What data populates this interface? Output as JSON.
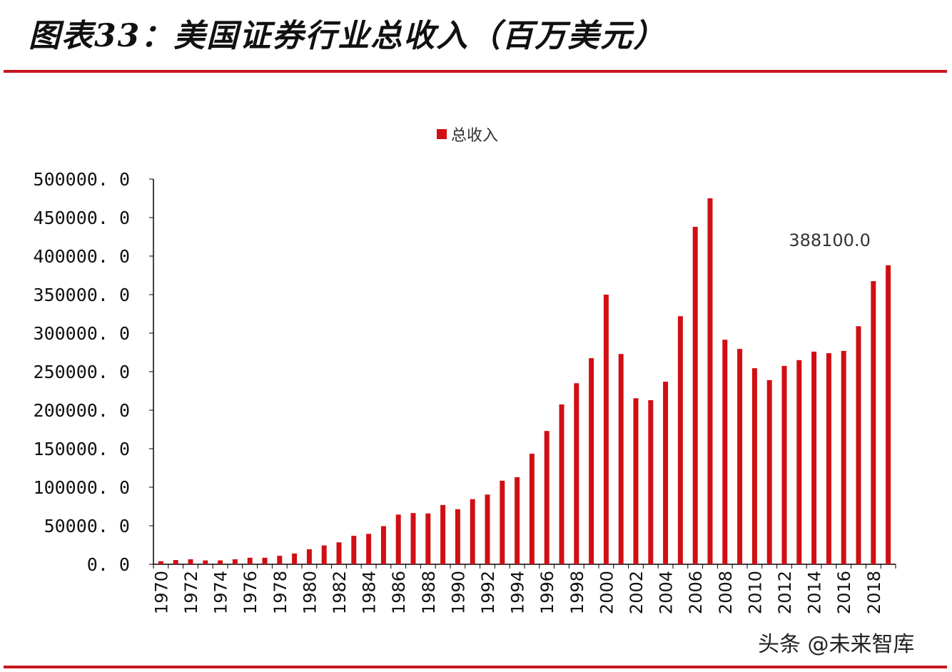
{
  "title": "图表33：美国证券行业总收入（百万美元）",
  "watermark": "头条 @未来智库",
  "chart_data": {
    "type": "bar",
    "title": "",
    "legend": [
      "总收入"
    ],
    "legend_position": "top-center",
    "color": "#d00f14",
    "xlabel": "",
    "ylabel": "",
    "ylim": [
      0,
      500000
    ],
    "yticks": [
      "0.0",
      "50000.0",
      "100000.0",
      "150000.0",
      "200000.0",
      "250000.0",
      "300000.0",
      "350000.0",
      "400000.0",
      "450000.0",
      "500000.0"
    ],
    "categories": [
      "1970",
      "1971",
      "1972",
      "1973",
      "1974",
      "1975",
      "1976",
      "1977",
      "1978",
      "1979",
      "1980",
      "1981",
      "1982",
      "1983",
      "1984",
      "1985",
      "1986",
      "1987",
      "1988",
      "1989",
      "1990",
      "1991",
      "1992",
      "1993",
      "1994",
      "1995",
      "1996",
      "1997",
      "1998",
      "1999",
      "2000",
      "2001",
      "2002",
      "2003",
      "2004",
      "2005",
      "2006",
      "2007",
      "2008",
      "2009",
      "2010",
      "2011",
      "2012",
      "2013",
      "2014",
      "2015",
      "2016",
      "2017",
      "2018",
      "2019"
    ],
    "xtick_labels": [
      "1970",
      "1972",
      "1974",
      "1976",
      "1978",
      "1980",
      "1982",
      "1984",
      "1986",
      "1988",
      "1990",
      "1992",
      "1994",
      "1996",
      "1998",
      "2000",
      "2002",
      "2004",
      "2006",
      "2008",
      "2010",
      "2012",
      "2014",
      "2016",
      "2018"
    ],
    "series": [
      {
        "name": "总收入",
        "values": [
          4000,
          5500,
          6500,
          5000,
          5000,
          6500,
          8500,
          8500,
          11000,
          14000,
          19500,
          24500,
          28500,
          37000,
          39500,
          49500,
          64500,
          66500,
          66000,
          77000,
          71500,
          84500,
          90500,
          108500,
          113000,
          143500,
          173000,
          207500,
          235000,
          267500,
          350000,
          273000,
          215500,
          213000,
          237000,
          322000,
          438000,
          475000,
          291500,
          279500,
          254500,
          239000,
          257500,
          265000,
          276000,
          274000,
          277000,
          309000,
          367500,
          388100
        ]
      }
    ],
    "annotations": [
      {
        "category": "2019",
        "text": "388100.0"
      }
    ]
  }
}
